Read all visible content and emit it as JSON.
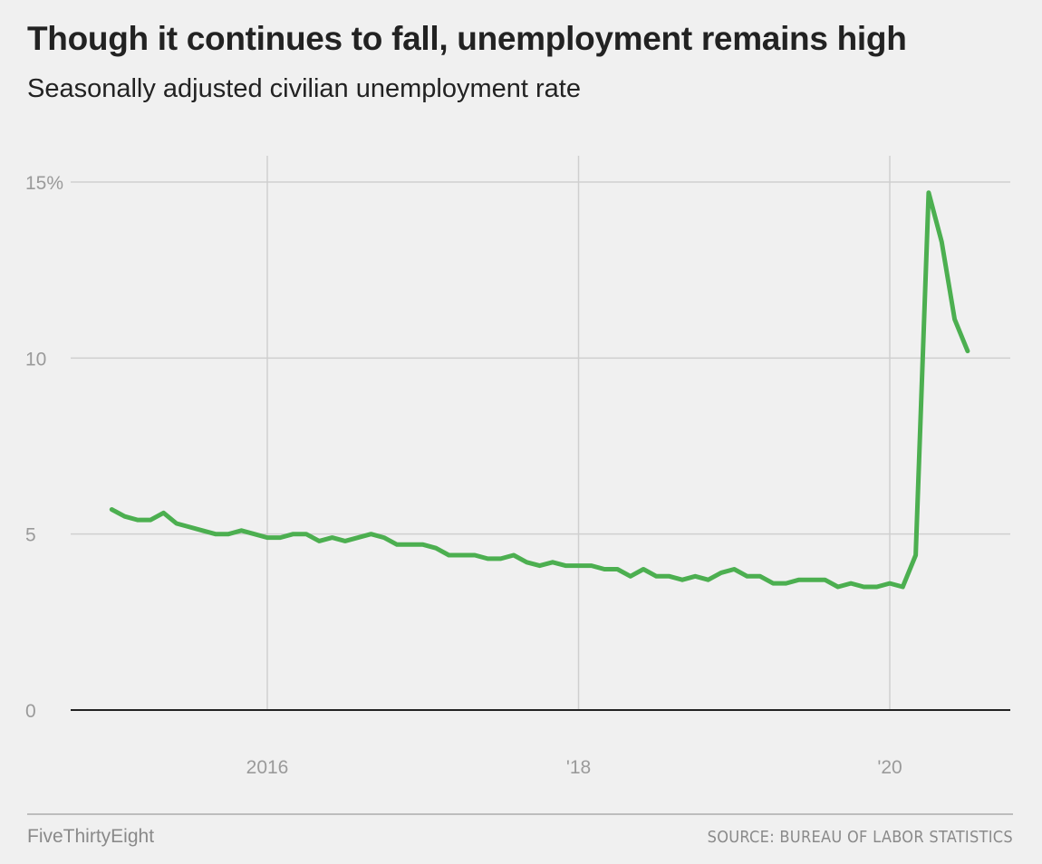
{
  "title": "Though it continues to fall, unemployment remains high",
  "subtitle": "Seasonally adjusted civilian unemployment rate",
  "footer": {
    "brand": "FiveThirtyEight",
    "source": "SOURCE: BUREAU OF LABOR STATISTICS"
  },
  "colors": {
    "line": "#4caf50",
    "background": "#f0f0f0",
    "grid": "#cfcfcf",
    "baseline": "#222222",
    "tick_text": "#9a9a9a"
  },
  "chart_data": {
    "type": "line",
    "title": "Though it continues to fall, unemployment remains high",
    "subtitle": "Seasonally adjusted civilian unemployment rate",
    "xlabel": "",
    "ylabel": "",
    "ylim": [
      0,
      15
    ],
    "xlim": [
      "2015-01",
      "2020-07"
    ],
    "yticks": [
      {
        "value": 15,
        "label": "15%"
      },
      {
        "value": 10,
        "label": "10"
      },
      {
        "value": 5,
        "label": "5"
      },
      {
        "value": 0,
        "label": "0"
      }
    ],
    "xticks": [
      {
        "value": "2016-01",
        "label": "2016"
      },
      {
        "value": "2018-01",
        "label": "'18"
      },
      {
        "value": "2020-01",
        "label": "'20"
      }
    ],
    "grid": true,
    "legend": "none",
    "series": [
      {
        "x": [
          "2015-01",
          "2015-02",
          "2015-03",
          "2015-04",
          "2015-05",
          "2015-06",
          "2015-07",
          "2015-08",
          "2015-09",
          "2015-10",
          "2015-11",
          "2015-12",
          "2016-01",
          "2016-02",
          "2016-03",
          "2016-04",
          "2016-05",
          "2016-06",
          "2016-07",
          "2016-08",
          "2016-09",
          "2016-10",
          "2016-11",
          "2016-12",
          "2017-01",
          "2017-02",
          "2017-03",
          "2017-04",
          "2017-05",
          "2017-06",
          "2017-07",
          "2017-08",
          "2017-09",
          "2017-10",
          "2017-11",
          "2017-12",
          "2018-01",
          "2018-02",
          "2018-03",
          "2018-04",
          "2018-05",
          "2018-06",
          "2018-07",
          "2018-08",
          "2018-09",
          "2018-10",
          "2018-11",
          "2018-12",
          "2019-01",
          "2019-02",
          "2019-03",
          "2019-04",
          "2019-05",
          "2019-06",
          "2019-07",
          "2019-08",
          "2019-09",
          "2019-10",
          "2019-11",
          "2019-12",
          "2020-01",
          "2020-02",
          "2020-03",
          "2020-04",
          "2020-05",
          "2020-06",
          "2020-07"
        ],
        "values": [
          5.7,
          5.5,
          5.4,
          5.4,
          5.6,
          5.3,
          5.2,
          5.1,
          5.0,
          5.0,
          5.1,
          5.0,
          4.9,
          4.9,
          5.0,
          5.0,
          4.8,
          4.9,
          4.8,
          4.9,
          5.0,
          4.9,
          4.7,
          4.7,
          4.7,
          4.6,
          4.4,
          4.4,
          4.4,
          4.3,
          4.3,
          4.4,
          4.2,
          4.1,
          4.2,
          4.1,
          4.1,
          4.1,
          4.0,
          4.0,
          3.8,
          4.0,
          3.8,
          3.8,
          3.7,
          3.8,
          3.7,
          3.9,
          4.0,
          3.8,
          3.8,
          3.6,
          3.6,
          3.7,
          3.7,
          3.7,
          3.5,
          3.6,
          3.5,
          3.5,
          3.6,
          3.5,
          4.4,
          14.7,
          13.3,
          11.1,
          10.2
        ]
      }
    ]
  }
}
